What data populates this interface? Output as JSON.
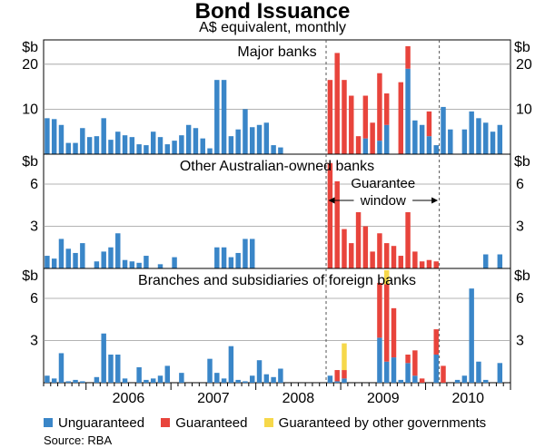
{
  "chart_data": {
    "type": "bar",
    "title": "Bond Issuance",
    "subtitle": "A$ equivalent, monthly",
    "unit_label": "$b",
    "months_start": "2005-07",
    "year_labels": [
      "2006",
      "2007",
      "2008",
      "2009",
      "2010"
    ],
    "colors": {
      "unguaranteed": "#3a86c8",
      "guaranteed": "#e8443c",
      "other_gov": "#f6d84a"
    },
    "legend": [
      "Unguaranteed",
      "Guaranteed",
      "Guaranteed by other governments"
    ],
    "guarantee_window": {
      "start_month_index": 40,
      "end_month_index": 56,
      "label_line1": "Guarantee",
      "label_line2": "window"
    },
    "panels": [
      {
        "name": "Major banks",
        "ylim": [
          0,
          25
        ],
        "yticks": [
          10,
          20
        ],
        "series": [
          {
            "name": "Unguaranteed",
            "values": [
              8,
              7.8,
              6.5,
              2.5,
              2.5,
              5.8,
              3.8,
              4,
              8,
              3.2,
              5,
              4.2,
              3.8,
              2.2,
              2,
              5,
              3.8,
              2.2,
              3,
              4.2,
              6.5,
              5.8,
              3.5,
              1.3,
              16.5,
              16.5,
              4,
              5.5,
              10,
              6,
              6.5,
              7,
              2,
              1.5,
              0,
              0,
              0,
              0,
              0,
              0,
              0,
              0,
              0,
              0,
              0,
              3.5,
              0,
              3,
              6.5,
              0,
              0,
              19,
              7.5,
              6.5,
              4,
              2,
              10.5,
              5.5,
              0,
              5.5,
              9.5,
              8,
              7,
              5,
              6.5
            ]
          },
          {
            "name": "Guaranteed",
            "values": [
              0,
              0,
              0,
              0,
              0,
              0,
              0,
              0,
              0,
              0,
              0,
              0,
              0,
              0,
              0,
              0,
              0,
              0,
              0,
              0,
              0,
              0,
              0,
              0,
              0,
              0,
              0,
              0,
              0,
              0,
              0,
              0,
              0,
              0,
              0,
              0,
              0,
              0,
              0,
              0,
              16.5,
              22.5,
              16.5,
              13,
              4,
              9.5,
              7,
              15,
              7,
              0,
              16,
              5,
              0,
              0,
              5.5,
              0,
              0,
              0,
              0,
              0,
              0,
              0,
              0,
              0,
              0
            ]
          },
          {
            "name": "Guaranteed by other governments",
            "values": [
              0,
              0,
              0,
              0,
              0,
              0,
              0,
              0,
              0,
              0,
              0,
              0,
              0,
              0,
              0,
              0,
              0,
              0,
              0,
              0,
              0,
              0,
              0,
              0,
              0,
              0,
              0,
              0,
              0,
              0,
              0,
              0,
              0,
              0,
              0,
              0,
              0,
              0,
              0,
              0,
              0,
              0,
              0,
              0,
              0,
              0,
              0,
              0,
              0,
              0,
              0,
              0,
              0,
              0,
              0,
              0,
              0,
              0,
              0,
              0,
              0,
              0,
              0,
              0,
              0
            ]
          }
        ]
      },
      {
        "name": "Other Australian-owned banks",
        "ylim": [
          0,
          8
        ],
        "yticks": [
          3,
          6
        ],
        "series": [
          {
            "name": "Unguaranteed",
            "values": [
              0.9,
              0.7,
              2.1,
              1.4,
              1.1,
              1.8,
              0,
              0.5,
              1.2,
              1.5,
              2.5,
              0.6,
              0.5,
              0.4,
              0.9,
              0,
              0.3,
              0,
              0.8,
              0,
              0,
              0,
              0,
              0,
              1.5,
              1.5,
              0.8,
              1.1,
              2.1,
              2.1,
              0,
              0,
              0,
              0,
              0,
              0,
              0,
              0,
              0,
              0,
              0,
              0,
              0,
              0,
              0,
              0,
              0,
              0,
              0,
              0,
              0,
              0,
              0,
              0,
              0,
              0,
              0,
              0,
              0,
              0,
              0,
              0,
              1,
              0,
              1
            ]
          },
          {
            "name": "Guaranteed",
            "values": [
              0,
              0,
              0,
              0,
              0,
              0,
              0,
              0,
              0,
              0,
              0,
              0,
              0,
              0,
              0,
              0,
              0,
              0,
              0,
              0,
              0,
              0,
              0,
              0,
              0,
              0,
              0,
              0,
              0,
              0,
              0,
              0,
              0,
              0,
              0,
              0,
              0,
              0,
              0,
              0,
              7.5,
              6.2,
              2.8,
              1.8,
              4,
              3,
              1.2,
              2.5,
              1.8,
              1.6,
              0.9,
              4,
              1.2,
              0.5,
              0.6,
              0.5,
              0,
              0,
              0,
              0,
              0,
              0,
              0,
              0,
              0
            ]
          },
          {
            "name": "Guaranteed by other governments",
            "values": [
              0,
              0,
              0,
              0,
              0,
              0,
              0,
              0,
              0,
              0,
              0,
              0,
              0,
              0,
              0,
              0,
              0,
              0,
              0,
              0,
              0,
              0,
              0,
              0,
              0,
              0,
              0,
              0,
              0,
              0,
              0,
              0,
              0,
              0,
              0,
              0,
              0,
              0,
              0,
              0,
              0,
              0,
              0,
              0,
              0,
              0,
              0,
              0,
              0,
              0,
              0,
              0,
              0,
              0,
              0,
              0,
              0,
              0,
              0,
              0,
              0,
              0,
              0,
              0,
              0
            ]
          }
        ]
      },
      {
        "name": "Branches and subsidiaries of foreign banks",
        "ylim": [
          0,
          8
        ],
        "yticks": [
          3,
          6
        ],
        "series": [
          {
            "name": "Unguaranteed",
            "values": [
              0.5,
              0.3,
              2.1,
              0.1,
              0.2,
              0.1,
              0,
              0.4,
              3.5,
              2,
              2,
              0.3,
              0,
              1.1,
              0.2,
              0.3,
              0.5,
              1.2,
              0,
              0.7,
              0,
              0,
              0,
              1.7,
              0.7,
              0.3,
              2.6,
              0.2,
              0.1,
              0.5,
              1.6,
              0.6,
              0.4,
              1,
              0,
              0,
              0,
              0,
              0,
              0,
              0.5,
              0.1,
              0.3,
              0,
              0,
              0,
              0,
              3.2,
              1.5,
              1.8,
              0.2,
              1.4,
              0.5,
              0,
              0,
              2,
              0,
              0,
              0.2,
              0.5,
              6.7,
              1.5,
              0.2,
              0,
              1.4
            ]
          },
          {
            "name": "Guaranteed",
            "values": [
              0,
              0,
              0,
              0,
              0,
              0,
              0,
              0,
              0,
              0,
              0,
              0,
              0,
              0,
              0,
              0,
              0,
              0,
              0,
              0,
              0,
              0,
              0,
              0,
              0,
              0,
              0,
              0,
              0,
              0,
              0,
              0,
              0,
              0,
              0,
              0,
              0,
              0,
              0,
              0,
              0,
              0.8,
              0.6,
              0,
              0,
              0,
              0,
              3.9,
              5.5,
              3.5,
              0,
              0.6,
              1.8,
              0.3,
              0,
              1.8,
              1.2,
              0,
              0,
              0,
              0,
              0,
              0,
              0,
              0
            ]
          },
          {
            "name": "Guaranteed by other governments",
            "values": [
              0,
              0,
              0,
              0,
              0,
              0,
              0,
              0,
              0,
              0,
              0,
              0,
              0,
              0,
              0,
              0,
              0,
              0,
              0,
              0,
              0,
              0,
              0,
              0,
              0,
              0,
              0,
              0,
              0,
              0,
              0,
              0,
              0,
              0,
              0,
              0,
              0,
              0,
              0,
              0,
              0,
              0,
              1.9,
              0,
              0,
              0,
              0,
              0,
              1.3,
              0,
              0,
              0,
              0,
              0,
              0,
              0,
              0,
              0,
              0,
              0,
              0,
              0,
              0,
              0,
              0
            ]
          }
        ]
      }
    ]
  },
  "source": "Source: RBA"
}
